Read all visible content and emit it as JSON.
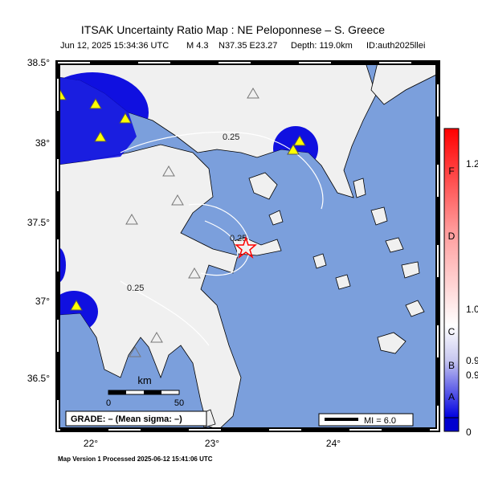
{
  "header": {
    "title": "ITSAK Uncertainty Ratio Map : NE Peloponnese – S. Greece",
    "info": [
      "Jun 12, 2025 15:34:36 UTC",
      "M 4.3",
      "N37.35 E23.27",
      "Depth: 119.0km",
      "ID:auth2025llei"
    ]
  },
  "latitude_labels": [
    "38.5°",
    "38°",
    "37.5°",
    "37°",
    "36.5°"
  ],
  "longitude_labels": [
    "22°",
    "23°",
    "24°"
  ],
  "contour_labels": [
    "0.25",
    "0.25",
    "0.25"
  ],
  "scale": {
    "unit": "km",
    "start": "0",
    "end": "50"
  },
  "grade_box": "GRADE: – (Mean sigma: –)",
  "intensity_box": "MI = 6.0",
  "colorbar": {
    "grades": [
      "F",
      "D",
      "C",
      "B",
      "A"
    ],
    "values": [
      "1.2",
      "1.0",
      "0.9",
      "0.9",
      "0"
    ]
  },
  "footer": "Map Version 1 Processed 2025-06-12 15:41:06 UTC"
}
